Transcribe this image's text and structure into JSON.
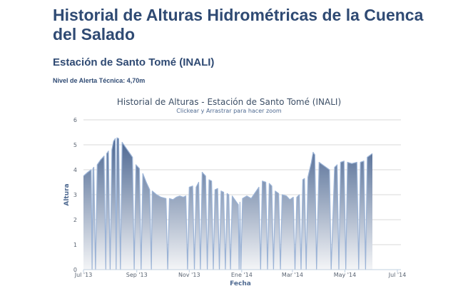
{
  "page": {
    "title": "Historial de Alturas Hidrométricas de la Cuenca del Salado",
    "station": "Estación de Santo Tomé (INALI)",
    "alert_level": "Nivel de Alerta Técnica: 4,70m"
  },
  "colors": {
    "heading": "#2f4a73",
    "area_top": "#4a6590",
    "area_bottom": "#f4f5f7",
    "gap_line": "#9bb3d6",
    "grid": "#d8d8d8"
  },
  "chart_data": {
    "type": "area",
    "title": "Historial de Alturas - Estación de Santo Tomé (INALI)",
    "subtitle": "Clickear y Arrastrar para hacer zoom",
    "xlabel": "Fecha",
    "ylabel": "Altura",
    "ylim": [
      0,
      6
    ],
    "yticks": [
      0,
      1,
      2,
      3,
      4,
      5,
      6
    ],
    "xticks": [
      "Jul '13",
      "Sep '13",
      "Nov '13",
      "Ene '14",
      "Mar '14",
      "May '14",
      "Jul '14"
    ],
    "grid": true,
    "legend": "none",
    "x_unit": "days since 1 Jul 2013",
    "series": [
      {
        "name": "Altura",
        "points": [
          [
            0,
            3.75
          ],
          [
            5,
            3.9
          ],
          [
            9,
            4.0
          ],
          [
            10,
            0
          ],
          [
            11,
            4.05
          ],
          [
            12,
            4.1
          ],
          [
            14,
            0
          ],
          [
            16,
            4.2
          ],
          [
            20,
            4.4
          ],
          [
            24,
            4.55
          ],
          [
            26,
            0
          ],
          [
            27,
            4.65
          ],
          [
            29,
            4.75
          ],
          [
            31,
            0
          ],
          [
            33,
            4.8
          ],
          [
            35,
            5.15
          ],
          [
            37,
            5.25
          ],
          [
            38,
            0
          ],
          [
            39,
            5.28
          ],
          [
            41,
            5.25
          ],
          [
            43,
            0
          ],
          [
            45,
            5.1
          ],
          [
            50,
            4.85
          ],
          [
            55,
            4.6
          ],
          [
            57,
            4.5
          ],
          [
            59,
            0
          ],
          [
            61,
            4.2
          ],
          [
            65,
            4.05
          ],
          [
            67,
            0
          ],
          [
            69,
            3.85
          ],
          [
            73,
            3.5
          ],
          [
            77,
            3.2
          ],
          [
            79,
            0
          ],
          [
            80,
            3.15
          ],
          [
            85,
            3.0
          ],
          [
            90,
            2.9
          ],
          [
            96,
            2.85
          ],
          [
            98,
            0
          ],
          [
            100,
            2.85
          ],
          [
            104,
            2.8
          ],
          [
            108,
            2.9
          ],
          [
            112,
            2.95
          ],
          [
            116,
            2.9
          ],
          [
            119,
            2.95
          ],
          [
            121,
            0
          ],
          [
            123,
            3.3
          ],
          [
            127,
            3.35
          ],
          [
            129,
            0
          ],
          [
            131,
            3.3
          ],
          [
            134,
            3.5
          ],
          [
            136,
            0
          ],
          [
            138,
            3.9
          ],
          [
            142,
            3.75
          ],
          [
            144,
            0
          ],
          [
            146,
            3.6
          ],
          [
            149,
            3.55
          ],
          [
            151,
            0
          ],
          [
            153,
            3.2
          ],
          [
            156,
            3.25
          ],
          [
            158,
            0
          ],
          [
            160,
            3.15
          ],
          [
            163,
            3.1
          ],
          [
            165,
            0
          ],
          [
            167,
            3.05
          ],
          [
            169,
            3.0
          ],
          [
            171,
            0
          ],
          [
            173,
            2.95
          ],
          [
            177,
            2.75
          ],
          [
            180,
            2.6
          ],
          [
            181,
            0
          ],
          [
            182,
            2.7
          ],
          [
            183,
            0
          ],
          [
            185,
            2.85
          ],
          [
            190,
            2.95
          ],
          [
            195,
            2.85
          ],
          [
            200,
            3.1
          ],
          [
            204,
            3.3
          ],
          [
            206,
            0
          ],
          [
            208,
            3.55
          ],
          [
            212,
            3.5
          ],
          [
            214,
            0
          ],
          [
            216,
            3.45
          ],
          [
            219,
            3.35
          ],
          [
            221,
            0
          ],
          [
            223,
            3.15
          ],
          [
            227,
            3.05
          ],
          [
            229,
            0
          ],
          [
            231,
            3.0
          ],
          [
            236,
            2.95
          ],
          [
            240,
            2.8
          ],
          [
            244,
            2.9
          ],
          [
            246,
            0
          ],
          [
            248,
            2.9
          ],
          [
            251,
            3.0
          ],
          [
            253,
            0
          ],
          [
            255,
            3.6
          ],
          [
            257,
            3.65
          ],
          [
            259,
            0
          ],
          [
            261,
            3.7
          ],
          [
            263,
            4.0
          ],
          [
            265,
            4.3
          ],
          [
            267,
            4.7
          ],
          [
            269,
            4.6
          ],
          [
            271,
            0
          ],
          [
            274,
            4.3
          ],
          [
            280,
            4.15
          ],
          [
            286,
            4.0
          ],
          [
            288,
            0
          ],
          [
            292,
            4.1
          ],
          [
            295,
            4.2
          ],
          [
            297,
            0
          ],
          [
            299,
            4.3
          ],
          [
            303,
            4.35
          ],
          [
            305,
            0
          ],
          [
            307,
            4.3
          ],
          [
            312,
            4.25
          ],
          [
            318,
            4.3
          ],
          [
            320,
            0
          ],
          [
            322,
            4.3
          ],
          [
            326,
            4.35
          ],
          [
            328,
            0
          ],
          [
            330,
            4.5
          ],
          [
            334,
            4.6
          ],
          [
            336,
            4.65
          ]
        ]
      }
    ]
  }
}
